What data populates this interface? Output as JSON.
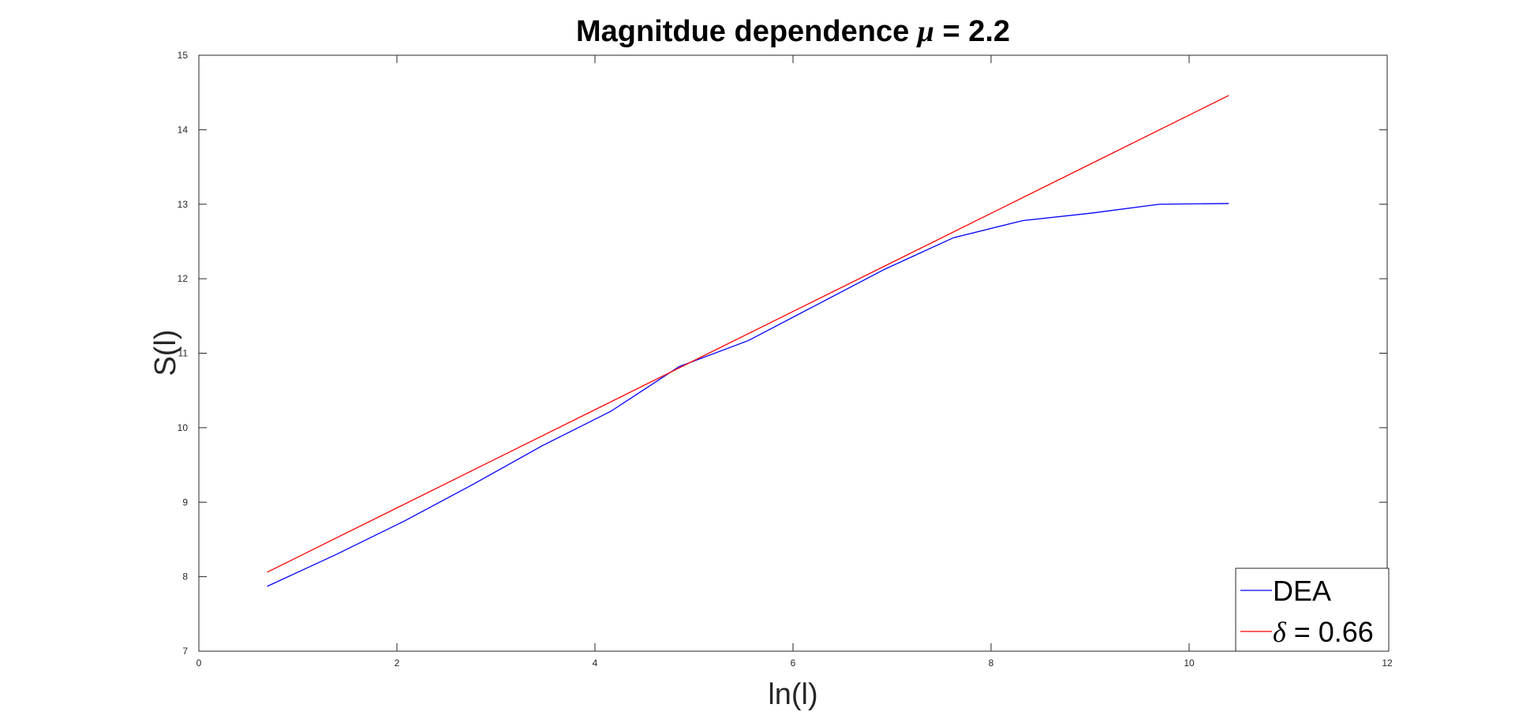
{
  "chart_data": {
    "type": "line",
    "title": {
      "prefix": "Magnitdue dependence ",
      "symbol": "μ",
      "suffix": " = 2.2"
    },
    "xlabel": "ln(l)",
    "ylabel": "S(l)",
    "xlim": [
      0,
      12
    ],
    "ylim": [
      7,
      15
    ],
    "xticks": [
      0,
      2,
      4,
      6,
      8,
      10,
      12
    ],
    "yticks": [
      7,
      8,
      9,
      10,
      11,
      12,
      13,
      14,
      15
    ],
    "grid": false,
    "legend_position": "bottom-right",
    "series": [
      {
        "name": "DEA",
        "color": "#0000ff",
        "x": [
          0.69,
          1.39,
          2.08,
          2.77,
          3.47,
          4.16,
          4.85,
          5.55,
          6.24,
          6.93,
          7.62,
          8.32,
          9.01,
          9.7,
          10.4
        ],
        "y": [
          7.87,
          8.3,
          8.75,
          9.24,
          9.76,
          10.22,
          10.82,
          11.17,
          11.65,
          12.13,
          12.55,
          12.78,
          12.88,
          13.0,
          13.01
        ]
      },
      {
        "name_symbol": "δ",
        "name_suffix": " = 0.66",
        "color": "#ff0000",
        "x": [
          0.69,
          10.4
        ],
        "y": [
          8.06,
          14.46
        ]
      }
    ]
  }
}
